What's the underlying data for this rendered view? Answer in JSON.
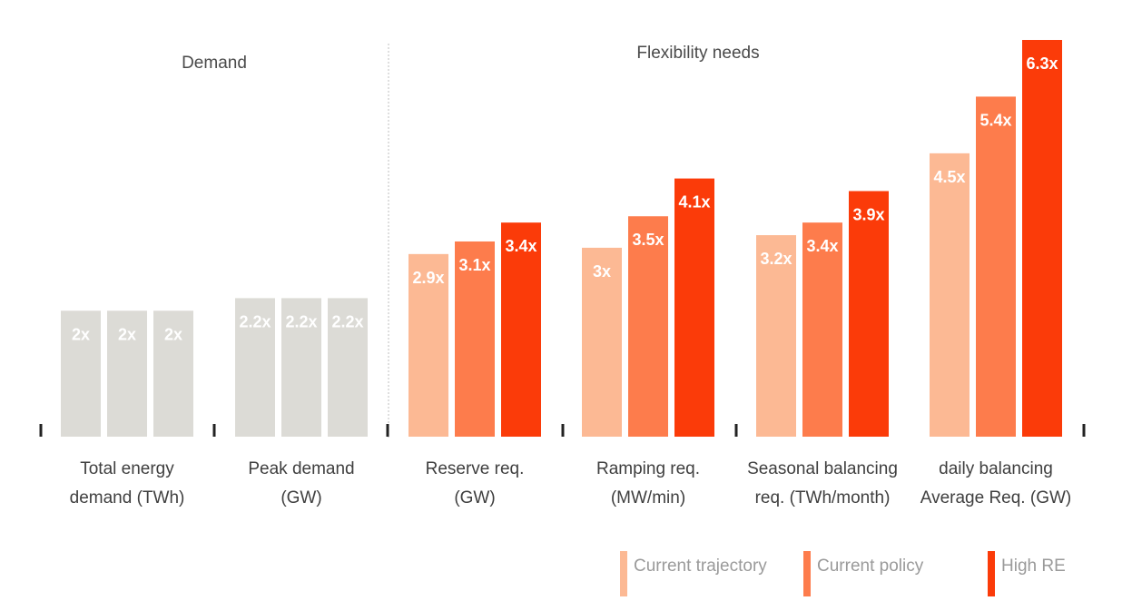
{
  "chart_data": {
    "type": "bar",
    "sections": [
      {
        "title": "Demand",
        "categories": [
          0,
          1
        ]
      },
      {
        "title": "Flexibility needs",
        "categories": [
          2,
          3,
          4,
          5
        ]
      }
    ],
    "categories": [
      [
        "Total energy",
        "demand (TWh)"
      ],
      [
        "Peak demand",
        "(GW)"
      ],
      [
        "Reserve req.",
        "(GW)"
      ],
      [
        "Ramping req.",
        "(MW/min)"
      ],
      [
        "Seasonal balancing",
        "req. (TWh/month)"
      ],
      [
        "daily balancing",
        "Average Req. (GW)"
      ]
    ],
    "series": [
      {
        "name": "Current trajectory",
        "values": [
          2,
          2.2,
          2.9,
          3,
          3.2,
          4.5
        ],
        "labels": [
          "2x",
          "2.2x",
          "2.9x",
          "3x",
          "3.2x",
          "4.5x"
        ]
      },
      {
        "name": "Current policy",
        "values": [
          2,
          2.2,
          3.1,
          3.5,
          3.4,
          5.4
        ],
        "labels": [
          "2x",
          "2.2x",
          "3.1x",
          "3.5x",
          "3.4x",
          "5.4x"
        ]
      },
      {
        "name": "High RE",
        "values": [
          2,
          2.2,
          3.4,
          4.1,
          3.9,
          6.3
        ],
        "labels": [
          "2x",
          "2.2x",
          "3.4x",
          "4.1x",
          "3.9x",
          "6.3x"
        ]
      }
    ],
    "ylim": [
      0,
      6.3
    ],
    "legend_position": "bottom-right",
    "grid": false
  },
  "colors": {
    "demand_bar": "#dcdbd6",
    "demand_label": "#ffffff",
    "series": [
      "#fcb994",
      "#fd7c4c",
      "#fb3b09"
    ],
    "series_label": [
      "#ffffff",
      "#ffffff",
      "#ffffff"
    ],
    "axis": "#222222",
    "divider": "#bfbfbf"
  }
}
